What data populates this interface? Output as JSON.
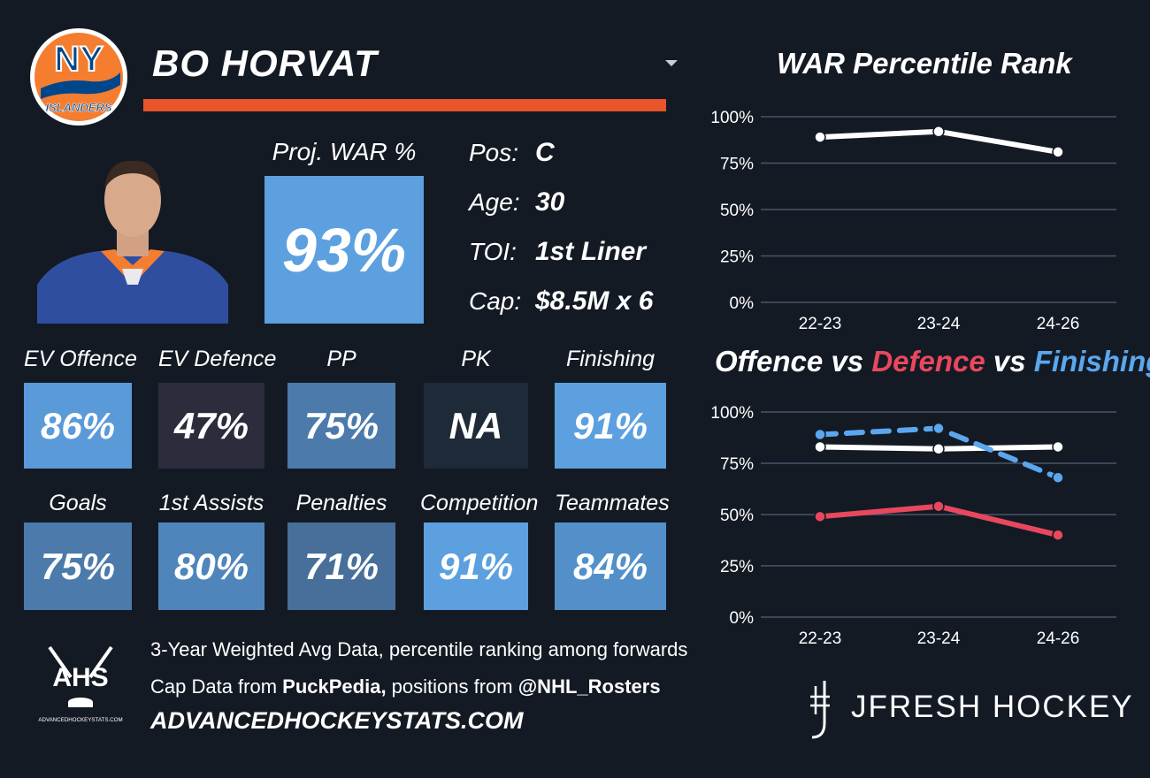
{
  "player": {
    "name": "BO HORVAT",
    "proj_war_label": "Proj. WAR %",
    "proj_war_value": "93%",
    "info": [
      {
        "label": "Pos:",
        "value": "C"
      },
      {
        "label": "Age:",
        "value": "30"
      },
      {
        "label": "TOI:",
        "value": "1st Liner"
      },
      {
        "label": "Cap:",
        "value": "$8.5M x 6"
      }
    ]
  },
  "team_logo": {
    "text_top": "NY",
    "text_bottom": "ISLANDERS"
  },
  "metrics_row1": [
    {
      "label": "EV Offence",
      "value": "86%",
      "color": "#5a9ad8"
    },
    {
      "label": "EV Defence",
      "value": "47%",
      "color": "#2b2d3d"
    },
    {
      "label": "PP",
      "value": "75%",
      "color": "#4b7aab"
    },
    {
      "label": "PK",
      "value": "NA",
      "color": "#1f2a38"
    },
    {
      "label": "Finishing",
      "value": "91%",
      "color": "#5ca0df"
    }
  ],
  "metrics_row2": [
    {
      "label": "Goals",
      "value": "75%",
      "color": "#4b7aab"
    },
    {
      "label": "1st Assists",
      "value": "80%",
      "color": "#4f85bb"
    },
    {
      "label": "Penalties",
      "value": "71%",
      "color": "#476f99"
    },
    {
      "label": "Competition",
      "value": "91%",
      "color": "#5ca0df"
    },
    {
      "label": "Teammates",
      "value": "84%",
      "color": "#5390ca"
    }
  ],
  "chart1": {
    "title": "WAR Percentile Rank"
  },
  "chart2": {
    "title_parts": [
      {
        "text": "Offence",
        "color": "#ffffff"
      },
      {
        "text": " vs ",
        "color": "#ffffff"
      },
      {
        "text": "Defence",
        "color": "#e8485e"
      },
      {
        "text": " vs ",
        "color": "#ffffff"
      },
      {
        "text": "Finishing",
        "color": "#5aa7ef"
      }
    ]
  },
  "chart_data": [
    {
      "type": "line",
      "title": "WAR Percentile Rank",
      "categories": [
        "22-23",
        "23-24",
        "24-26"
      ],
      "series": [
        {
          "values": [
            89,
            92,
            81
          ],
          "color": "#ffffff",
          "dashed": false
        }
      ],
      "yticks": [
        "100%",
        "75%",
        "50%",
        "25%",
        "0%"
      ],
      "ylim": [
        0,
        100
      ],
      "grid": true
    },
    {
      "type": "line",
      "title": "Offence vs Defence vs Finishing",
      "categories": [
        "22-23",
        "23-24",
        "24-26"
      ],
      "series": [
        {
          "name": "Offence",
          "values": [
            83,
            82,
            83
          ],
          "color": "#ffffff",
          "dashed": false
        },
        {
          "name": "Defence",
          "values": [
            49,
            54,
            40
          ],
          "color": "#e8485e",
          "dashed": false
        },
        {
          "name": "Finishing",
          "values": [
            89,
            92,
            68
          ],
          "color": "#5aa7ef",
          "dashed": true
        }
      ],
      "yticks": [
        "100%",
        "75%",
        "50%",
        "25%",
        "0%"
      ],
      "ylim": [
        0,
        100
      ],
      "grid": true
    }
  ],
  "footer": {
    "line1": "3-Year Weighted Avg Data, percentile ranking among forwards",
    "line2_prefix": "Cap Data from ",
    "line2_bold1": "PuckPedia,",
    "line2_mid": " positions from ",
    "line2_bold2": "@NHL_Rosters",
    "url": "ADVANCEDHOCKEYSTATS.COM",
    "ahs_logo_text": "AHS",
    "ahs_logo_sub": "ADVANCEDHOCKEYSTATS.COM",
    "brand": "JFRESH HOCKEY"
  }
}
